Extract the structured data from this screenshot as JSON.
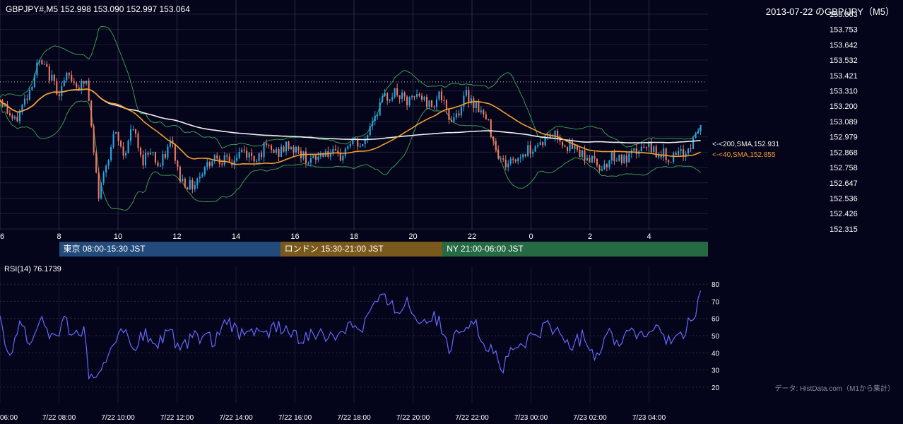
{
  "header": {
    "symbol_info": "GBPJPY#,M5 152.998 153.090 152.997 153.064",
    "title": "2013-07-22 のGBP/JPY（M5）"
  },
  "colors": {
    "background": "#04041a",
    "grid": "#1e2034",
    "bull": "#29a8e0",
    "bear": "#f07860",
    "sma200": "#f0f0f0",
    "sma40": "#f0a030",
    "bollinger": "#3c9a50",
    "rsi": "#6868ff"
  },
  "sessions": [
    {
      "label": "東京 08:00-15:30 JST",
      "color": "#224a7a",
      "start_hour": 8,
      "end_hour": 15.5
    },
    {
      "label": "ロンドン 15:30-21:00 JST",
      "color": "#7a5a1c",
      "start_hour": 15.5,
      "end_hour": 21
    },
    {
      "label": "NY 21:00-06:00 JST",
      "color": "#266a44",
      "start_hour": 21,
      "end_hour": 30
    }
  ],
  "rsi_label": "RSI(14) 76.1739",
  "source_note": "データ: HistData.com（M1から集計）",
  "chart_data": [
    {
      "type": "candlestick",
      "title": "2013-07-22 のGBP/JPY（M5）",
      "hours_range": [
        6,
        29.75
      ],
      "ylim": [
        152.315,
        153.863
      ],
      "y_ticks": [
        "153.863",
        "153.753",
        "153.642",
        "153.532",
        "153.421",
        "153.310",
        "153.200",
        "153.089",
        "152.979",
        "152.868",
        "152.758",
        "152.647",
        "152.536",
        "152.426",
        "152.315"
      ],
      "x_tick_labels": [
        {
          "hour": 6,
          "label": "6"
        },
        {
          "hour": 8,
          "label": "8"
        },
        {
          "hour": 10,
          "label": "10"
        },
        {
          "hour": 12,
          "label": "12"
        },
        {
          "hour": 14,
          "label": "14"
        },
        {
          "hour": 16,
          "label": "16"
        },
        {
          "hour": 18,
          "label": "18"
        },
        {
          "hour": 20,
          "label": "20"
        },
        {
          "hour": 22,
          "label": "22"
        },
        {
          "hour": 24,
          "label": "0"
        },
        {
          "hour": 26,
          "label": "2"
        },
        {
          "hour": 28,
          "label": "4"
        }
      ],
      "reference_line": 153.375,
      "price_path": [
        [
          6.0,
          153.25
        ],
        [
          6.5,
          153.08
        ],
        [
          7.0,
          153.32
        ],
        [
          7.3,
          153.52
        ],
        [
          7.6,
          153.45
        ],
        [
          8.0,
          153.3
        ],
        [
          8.3,
          153.42
        ],
        [
          8.7,
          153.34
        ],
        [
          8.95,
          153.38
        ],
        [
          9.15,
          152.9
        ],
        [
          9.35,
          152.55
        ],
        [
          9.6,
          152.8
        ],
        [
          9.9,
          153.0
        ],
        [
          10.2,
          152.85
        ],
        [
          10.5,
          153.05
        ],
        [
          10.8,
          152.8
        ],
        [
          11.1,
          152.9
        ],
        [
          11.4,
          152.75
        ],
        [
          11.8,
          152.95
        ],
        [
          12.1,
          152.68
        ],
        [
          12.5,
          152.62
        ],
        [
          12.9,
          152.75
        ],
        [
          13.3,
          152.85
        ],
        [
          13.8,
          152.78
        ],
        [
          14.2,
          152.88
        ],
        [
          14.6,
          152.82
        ],
        [
          15.0,
          152.9
        ],
        [
          15.4,
          152.86
        ],
        [
          15.8,
          152.92
        ],
        [
          16.2,
          152.85
        ],
        [
          16.6,
          152.8
        ],
        [
          17.0,
          152.88
        ],
        [
          17.5,
          152.82
        ],
        [
          17.9,
          152.95
        ],
        [
          18.3,
          152.9
        ],
        [
          18.6,
          153.1
        ],
        [
          19.0,
          153.25
        ],
        [
          19.4,
          153.3
        ],
        [
          19.8,
          153.22
        ],
        [
          20.2,
          153.28
        ],
        [
          20.6,
          153.2
        ],
        [
          20.9,
          153.3
        ],
        [
          21.2,
          153.1
        ],
        [
          21.5,
          153.15
        ],
        [
          21.8,
          153.28
        ],
        [
          22.2,
          153.2
        ],
        [
          22.6,
          153.05
        ],
        [
          22.9,
          152.85
        ],
        [
          23.1,
          152.78
        ],
        [
          23.5,
          152.82
        ],
        [
          24.0,
          152.9
        ],
        [
          24.4,
          152.95
        ],
        [
          24.8,
          153.0
        ],
        [
          25.2,
          152.92
        ],
        [
          25.6,
          152.88
        ],
        [
          26.0,
          152.82
        ],
        [
          26.4,
          152.76
        ],
        [
          26.8,
          152.85
        ],
        [
          27.2,
          152.8
        ],
        [
          27.6,
          152.88
        ],
        [
          28.0,
          152.9
        ],
        [
          28.4,
          152.86
        ],
        [
          28.8,
          152.82
        ],
        [
          29.2,
          152.86
        ],
        [
          29.5,
          152.95
        ],
        [
          29.75,
          153.064
        ]
      ],
      "series": [
        {
          "name": "<-<200,SMA,152.931",
          "last_value": 152.931
        },
        {
          "name": "<-<40,SMA,152.855",
          "last_value": 152.855
        }
      ]
    },
    {
      "type": "line",
      "title": "RSI(14) 76.1739",
      "ylim": [
        15,
        85
      ],
      "y_ticks": [
        "80",
        "70",
        "60",
        "50",
        "40",
        "30",
        "20"
      ],
      "rsi_path": [
        [
          6.0,
          58
        ],
        [
          6.3,
          38
        ],
        [
          6.7,
          60
        ],
        [
          7.0,
          45
        ],
        [
          7.4,
          62
        ],
        [
          7.8,
          48
        ],
        [
          8.2,
          58
        ],
        [
          8.6,
          50
        ],
        [
          8.9,
          55
        ],
        [
          9.0,
          25
        ],
        [
          9.3,
          22
        ],
        [
          9.7,
          42
        ],
        [
          10.1,
          56
        ],
        [
          10.5,
          40
        ],
        [
          10.9,
          52
        ],
        [
          11.3,
          42
        ],
        [
          11.7,
          55
        ],
        [
          12.1,
          40
        ],
        [
          12.5,
          48
        ],
        [
          12.9,
          50
        ],
        [
          13.3,
          46
        ],
        [
          13.7,
          58
        ],
        [
          14.1,
          50
        ],
        [
          14.5,
          55
        ],
        [
          14.9,
          48
        ],
        [
          15.3,
          56
        ],
        [
          15.8,
          52
        ],
        [
          16.2,
          46
        ],
        [
          16.6,
          54
        ],
        [
          17.0,
          48
        ],
        [
          17.5,
          52
        ],
        [
          17.9,
          58
        ],
        [
          18.3,
          55
        ],
        [
          18.6,
          68
        ],
        [
          19.0,
          72
        ],
        [
          19.4,
          65
        ],
        [
          19.8,
          70
        ],
        [
          20.2,
          58
        ],
        [
          20.6,
          62
        ],
        [
          20.9,
          58
        ],
        [
          21.2,
          40
        ],
        [
          21.6,
          55
        ],
        [
          22.0,
          60
        ],
        [
          22.4,
          46
        ],
        [
          22.8,
          40
        ],
        [
          23.0,
          30
        ],
        [
          23.4,
          42
        ],
        [
          23.8,
          45
        ],
        [
          24.2,
          52
        ],
        [
          24.6,
          56
        ],
        [
          25.0,
          50
        ],
        [
          25.4,
          44
        ],
        [
          25.8,
          50
        ],
        [
          26.2,
          38
        ],
        [
          26.6,
          52
        ],
        [
          27.0,
          46
        ],
        [
          27.4,
          55
        ],
        [
          27.8,
          48
        ],
        [
          28.2,
          56
        ],
        [
          28.6,
          45
        ],
        [
          29.0,
          50
        ],
        [
          29.3,
          55
        ],
        [
          29.55,
          62
        ],
        [
          29.75,
          76.1739
        ]
      ]
    },
    {
      "type": "time_axis",
      "tick_labels": [
        {
          "hour": 6,
          "label": "06:00"
        },
        {
          "hour": 8,
          "label": "7/22 08:00"
        },
        {
          "hour": 10,
          "label": "7/22 10:00"
        },
        {
          "hour": 12,
          "label": "7/22 12:00"
        },
        {
          "hour": 14,
          "label": "7/22 14:00"
        },
        {
          "hour": 16,
          "label": "7/22 16:00"
        },
        {
          "hour": 18,
          "label": "7/22 18:00"
        },
        {
          "hour": 20,
          "label": "7/22 20:00"
        },
        {
          "hour": 22,
          "label": "7/22 22:00"
        },
        {
          "hour": 24,
          "label": "7/23 00:00"
        },
        {
          "hour": 26,
          "label": "7/23 02:00"
        },
        {
          "hour": 28,
          "label": "7/23 04:00"
        }
      ]
    }
  ]
}
